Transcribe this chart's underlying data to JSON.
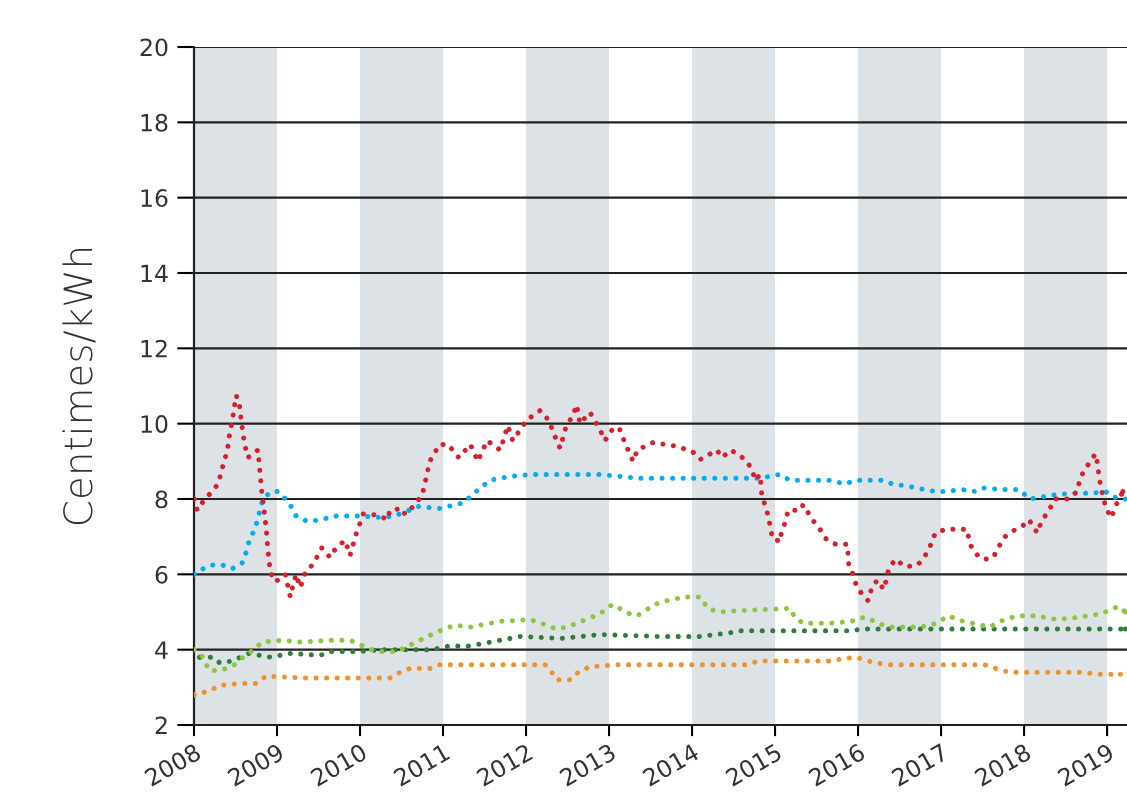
{
  "chart_data": {
    "type": "line",
    "ylabel": "Centimes/kWh",
    "xlim": [
      2008,
      2019.24
    ],
    "xticks": [
      2008,
      2009,
      2010,
      2011,
      2012,
      2013,
      2014,
      2015,
      2016,
      2017,
      2018,
      2019
    ],
    "ylim": [
      2,
      20
    ],
    "yticks": [
      2,
      4,
      6,
      8,
      10,
      12,
      14,
      16,
      18,
      20
    ],
    "grid": "y",
    "line_style": "dotted",
    "marker": "none",
    "bands": [
      {
        "axis": "x",
        "from": 2008,
        "to": 2009,
        "color": "#dde2e7"
      },
      {
        "axis": "x",
        "from": 2010,
        "to": 2011,
        "color": "#dde2e7"
      },
      {
        "axis": "x",
        "from": 2012,
        "to": 2013,
        "color": "#dde2e7"
      },
      {
        "axis": "x",
        "from": 2014,
        "to": 2015,
        "color": "#dde2e7"
      },
      {
        "axis": "x",
        "from": 2016,
        "to": 2017,
        "color": "#dde2e7"
      },
      {
        "axis": "x",
        "from": 2018,
        "to": 2019,
        "color": "#dde2e7"
      }
    ],
    "series": [
      {
        "color": "#f0912a",
        "x": [
          2008.0,
          2008.18,
          2008.31,
          2008.55,
          2008.75,
          2008.87,
          2009.28,
          2010.36,
          2010.43,
          2010.6,
          2010.84,
          2010.96,
          2011.39,
          2012.23,
          2012.31,
          2012.37,
          2012.53,
          2012.63,
          2012.77,
          2013.13,
          2014.64,
          2014.81,
          2015.66,
          2015.96,
          2016.05,
          2016.2,
          2016.39,
          2017.52,
          2017.66,
          2017.82,
          2018.73,
          2018.86,
          2019.16
        ],
        "values": [
          2.8,
          2.9,
          3.05,
          3.1,
          3.1,
          3.3,
          3.25,
          3.25,
          3.35,
          3.5,
          3.5,
          3.6,
          3.6,
          3.6,
          3.4,
          3.2,
          3.2,
          3.4,
          3.55,
          3.6,
          3.6,
          3.7,
          3.7,
          3.8,
          3.75,
          3.65,
          3.6,
          3.6,
          3.5,
          3.4,
          3.4,
          3.35,
          3.35
        ]
      },
      {
        "color": "#2e7d3c",
        "x": [
          2008.07,
          2008.23,
          2008.31,
          2008.46,
          2008.66,
          2008.92,
          2009.16,
          2009.52,
          2009.64,
          2010.0,
          2010.24,
          2010.87,
          2011.08,
          2011.33,
          2011.69,
          2011.93,
          2012.41,
          2012.65,
          2012.89,
          2013.61,
          2014.1,
          2014.46,
          2014.58,
          2015.3,
          2015.92,
          2016.05,
          2016.51,
          2017.71,
          2018.92,
          2019.22
        ],
        "values": [
          3.8,
          3.8,
          3.65,
          3.7,
          3.9,
          3.8,
          3.9,
          3.85,
          3.95,
          3.95,
          4.0,
          4.0,
          4.1,
          4.1,
          4.25,
          4.35,
          4.3,
          4.35,
          4.4,
          4.35,
          4.35,
          4.45,
          4.5,
          4.5,
          4.5,
          4.55,
          4.55,
          4.55,
          4.55,
          4.55
        ]
      },
      {
        "color": "#8dc63f",
        "x": [
          2008.0,
          2008.11,
          2008.18,
          2008.31,
          2008.46,
          2008.59,
          2008.72,
          2008.82,
          2009.06,
          2009.28,
          2009.64,
          2009.88,
          2010.19,
          2010.45,
          2010.72,
          2010.96,
          2011.14,
          2011.33,
          2011.69,
          2012.05,
          2012.25,
          2012.36,
          2012.49,
          2012.72,
          2012.89,
          2013.04,
          2013.25,
          2013.34,
          2013.55,
          2013.7,
          2013.92,
          2014.1,
          2014.19,
          2014.31,
          2014.7,
          2015.18,
          2015.24,
          2015.34,
          2015.66,
          2015.92,
          2016.02,
          2016.12,
          2016.23,
          2016.39,
          2016.75,
          2016.95,
          2017.08,
          2017.27,
          2017.59,
          2017.71,
          2017.92,
          2018.14,
          2018.4,
          2018.63,
          2018.92,
          2019.14,
          2019.22
        ],
        "values": [
          4.0,
          3.8,
          3.45,
          3.45,
          3.55,
          3.8,
          4.0,
          4.2,
          4.25,
          4.2,
          4.25,
          4.25,
          3.95,
          3.95,
          4.25,
          4.5,
          4.65,
          4.6,
          4.75,
          4.8,
          4.65,
          4.55,
          4.6,
          4.8,
          4.95,
          5.2,
          4.95,
          4.9,
          5.2,
          5.3,
          5.4,
          5.4,
          5.1,
          5.0,
          5.05,
          5.1,
          4.85,
          4.7,
          4.7,
          4.75,
          4.85,
          4.85,
          4.7,
          4.6,
          4.6,
          4.7,
          4.9,
          4.75,
          4.6,
          4.75,
          4.9,
          4.9,
          4.8,
          4.85,
          4.95,
          5.15,
          5.0
        ]
      },
      {
        "color": "#00aeef",
        "x": [
          2008.0,
          2008.11,
          2008.22,
          2008.34,
          2008.46,
          2008.58,
          2008.63,
          2008.66,
          2008.72,
          2008.76,
          2008.83,
          2008.93,
          2009.02,
          2009.16,
          2009.23,
          2009.37,
          2009.52,
          2009.72,
          2010.01,
          2010.29,
          2010.48,
          2010.7,
          2010.96,
          2011.25,
          2011.45,
          2011.57,
          2011.81,
          2012.05,
          2012.41,
          2012.89,
          2013.37,
          2014.1,
          2014.82,
          2015.05,
          2015.18,
          2015.66,
          2015.84,
          2015.98,
          2016.27,
          2016.42,
          2016.69,
          2016.93,
          2017.06,
          2017.25,
          2017.41,
          2017.53,
          2017.71,
          2017.94,
          2018.07,
          2018.34,
          2018.55,
          2018.8,
          2018.98,
          2019.08,
          2019.22
        ],
        "values": [
          6.0,
          6.15,
          6.25,
          6.25,
          6.15,
          6.3,
          6.6,
          6.85,
          7.15,
          7.4,
          8.0,
          8.2,
          8.2,
          7.85,
          7.55,
          7.4,
          7.45,
          7.55,
          7.55,
          7.5,
          7.6,
          7.8,
          7.75,
          7.9,
          8.3,
          8.5,
          8.6,
          8.65,
          8.65,
          8.65,
          8.55,
          8.55,
          8.55,
          8.65,
          8.5,
          8.5,
          8.4,
          8.5,
          8.5,
          8.4,
          8.3,
          8.2,
          8.2,
          8.25,
          8.2,
          8.3,
          8.25,
          8.25,
          8.0,
          8.1,
          8.15,
          8.15,
          8.2,
          8.05,
          8.0
        ]
      },
      {
        "color": "#d7202a",
        "x": [
          2008.0,
          2008.04,
          2008.13,
          2008.22,
          2008.29,
          2008.34,
          2008.36,
          2008.4,
          2008.42,
          2008.47,
          2008.49,
          2008.51,
          2008.55,
          2008.58,
          2008.61,
          2008.65,
          2008.77,
          2008.8,
          2008.82,
          2008.84,
          2008.87,
          2008.89,
          2008.92,
          2008.98,
          2009.1,
          2009.16,
          2009.18,
          2009.23,
          2009.28,
          2009.35,
          2009.43,
          2009.54,
          2009.64,
          2009.71,
          2009.82,
          2009.88,
          2009.95,
          2010.04,
          2010.12,
          2010.24,
          2010.33,
          2010.36,
          2010.51,
          2010.54,
          2010.6,
          2010.75,
          2010.84,
          2010.96,
          2011.06,
          2011.19,
          2011.33,
          2011.42,
          2011.53,
          2011.69,
          2011.78,
          2011.84,
          2012.01,
          2012.17,
          2012.27,
          2012.36,
          2012.41,
          2012.48,
          2012.57,
          2012.61,
          2012.65,
          2012.77,
          2012.89,
          2012.95,
          2013.04,
          2013.12,
          2013.19,
          2013.29,
          2013.34,
          2013.53,
          2013.67,
          2013.82,
          2014.01,
          2014.1,
          2014.3,
          2014.36,
          2014.47,
          2014.64,
          2014.72,
          2014.76,
          2014.82,
          2014.84,
          2014.9,
          2014.94,
          2014.96,
          2015.0,
          2015.04,
          2015.11,
          2015.16,
          2015.3,
          2015.34,
          2015.45,
          2015.54,
          2015.61,
          2015.73,
          2015.87,
          2015.88,
          2015.89,
          2015.94,
          2015.98,
          2016.04,
          2016.12,
          2016.16,
          2016.23,
          2016.31,
          2016.34,
          2016.37,
          2016.45,
          2016.57,
          2016.72,
          2016.81,
          2016.88,
          2016.93,
          2017.06,
          2017.2,
          2017.31,
          2017.33,
          2017.37,
          2017.46,
          2017.53,
          2017.63,
          2017.7,
          2017.77,
          2017.9,
          2017.99,
          2018.06,
          2018.1,
          2018.16,
          2018.2,
          2018.28,
          2018.34,
          2018.37,
          2018.53,
          2018.64,
          2018.67,
          2018.72,
          2018.8,
          2018.86,
          2018.89,
          2018.9,
          2018.93,
          2018.95,
          2018.99,
          2019.05,
          2019.1,
          2019.19
        ],
        "values": [
          8.0,
          7.7,
          8.0,
          8.2,
          8.4,
          8.8,
          9.0,
          9.25,
          9.6,
          10.2,
          10.5,
          10.75,
          10.45,
          9.9,
          9.45,
          9.1,
          9.3,
          8.6,
          8.1,
          7.8,
          7.2,
          6.65,
          6.05,
          5.8,
          6.0,
          5.4,
          5.6,
          6.0,
          5.65,
          6.1,
          6.25,
          6.7,
          6.45,
          6.7,
          6.9,
          6.5,
          7.05,
          7.6,
          7.6,
          7.55,
          7.45,
          7.7,
          7.75,
          7.6,
          7.7,
          8.1,
          9.0,
          9.45,
          9.45,
          9.1,
          9.45,
          9.0,
          9.55,
          9.3,
          9.95,
          9.55,
          10.1,
          10.35,
          10.1,
          9.6,
          9.35,
          9.9,
          10.25,
          10.5,
          10.0,
          10.3,
          9.85,
          9.55,
          9.85,
          9.9,
          9.5,
          9.0,
          9.3,
          9.5,
          9.45,
          9.4,
          9.25,
          9.05,
          9.3,
          9.1,
          9.3,
          9.05,
          8.8,
          8.5,
          8.65,
          8.1,
          7.7,
          7.3,
          7.05,
          7.05,
          6.85,
          7.3,
          7.7,
          7.7,
          7.85,
          7.45,
          7.2,
          6.95,
          6.8,
          6.8,
          6.5,
          6.2,
          6.0,
          5.7,
          5.5,
          5.3,
          5.6,
          5.85,
          5.6,
          5.85,
          6.15,
          6.4,
          6.2,
          6.25,
          6.5,
          6.8,
          7.1,
          7.2,
          7.2,
          7.2,
          7.0,
          6.7,
          6.45,
          6.4,
          6.45,
          6.75,
          7.0,
          7.2,
          7.3,
          7.45,
          7.3,
          7.1,
          7.35,
          7.65,
          7.85,
          8.0,
          8.0,
          8.2,
          8.5,
          8.75,
          9.0,
          9.2,
          8.9,
          8.6,
          8.3,
          8.05,
          7.75,
          7.5,
          7.8,
          8.2
        ]
      }
    ]
  }
}
